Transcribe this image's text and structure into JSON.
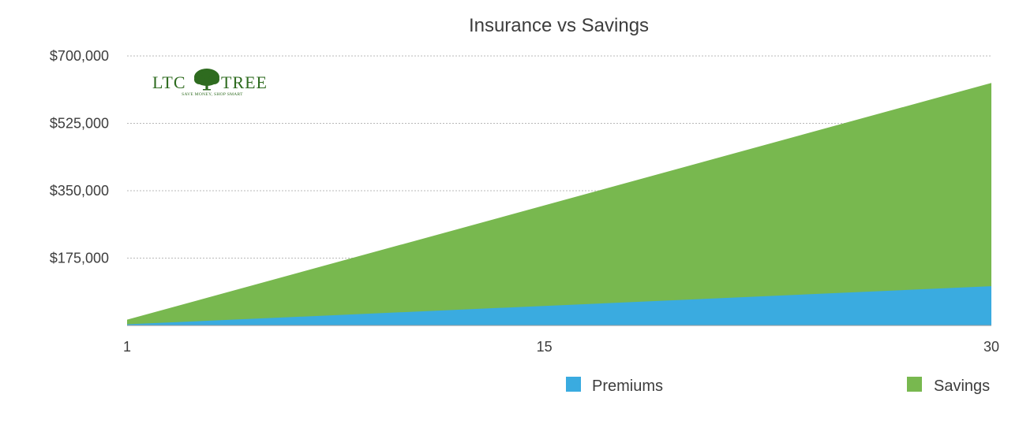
{
  "logo": {
    "brand_left": "LTC",
    "brand_right": "TREE",
    "tagline": "SAVE MONEY, SHOP SMART",
    "color": "#2e6b1f"
  },
  "chart_data": {
    "type": "area",
    "title": "Insurance vs Savings",
    "xlabel": "",
    "ylabel": "",
    "x": [
      1,
      30
    ],
    "xticks": [
      "1",
      "15",
      "30"
    ],
    "ylim": [
      0,
      700000
    ],
    "yticks": [
      "$175,000",
      "$350,000",
      "$525,000",
      "$700,000"
    ],
    "grid": true,
    "stacked": false,
    "legend": "bottom-right",
    "series": [
      {
        "name": "Savings",
        "color": "#78b84f",
        "values": [
          15000,
          630000
        ]
      },
      {
        "name": "Premiums",
        "color": "#3aabe0",
        "values": [
          3000,
          102000
        ]
      }
    ]
  }
}
